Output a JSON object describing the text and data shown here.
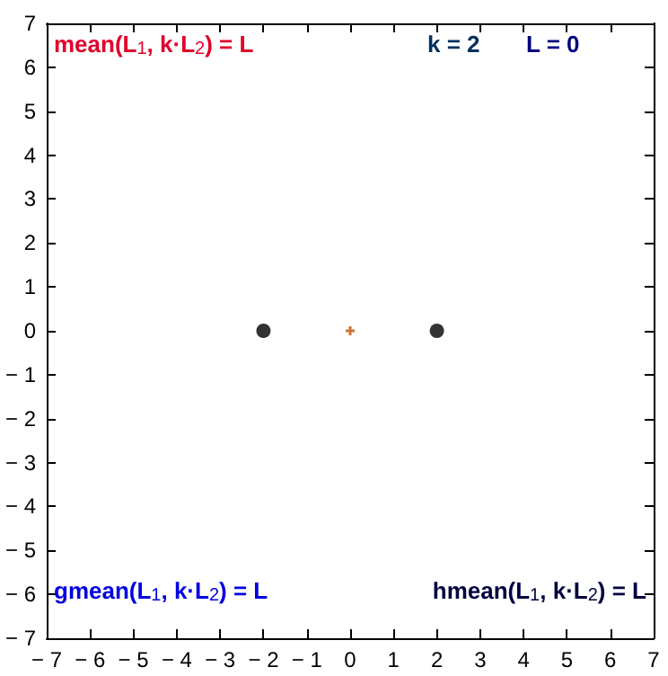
{
  "chart_data": {
    "type": "scatter",
    "xlim": [
      -7,
      7
    ],
    "ylim": [
      -7,
      7
    ],
    "xticks": [
      -7,
      -6,
      -5,
      -4,
      -3,
      -2,
      -1,
      0,
      1,
      2,
      3,
      4,
      5,
      6,
      7
    ],
    "yticks": [
      -7,
      -6,
      -5,
      -4,
      -3,
      -2,
      -1,
      0,
      1,
      2,
      3,
      4,
      5,
      6,
      7
    ],
    "series": [
      {
        "color": "#000000",
        "marker": "circle",
        "x": [
          -2,
          2
        ],
        "values": [
          0,
          0
        ]
      },
      {
        "color": "#c05000",
        "marker": "cross",
        "x": [
          0
        ],
        "values": [
          0
        ]
      }
    ],
    "annotations": [
      "mean(L$_{1}$, k·L$_{2}$) = L",
      "k = 2",
      "L = 0",
      "gmean(L$_{1}$, k·L$_{2}$) = L",
      "hmean(L$_{1}$, k·L$_{2}$) = L"
    ]
  }
}
